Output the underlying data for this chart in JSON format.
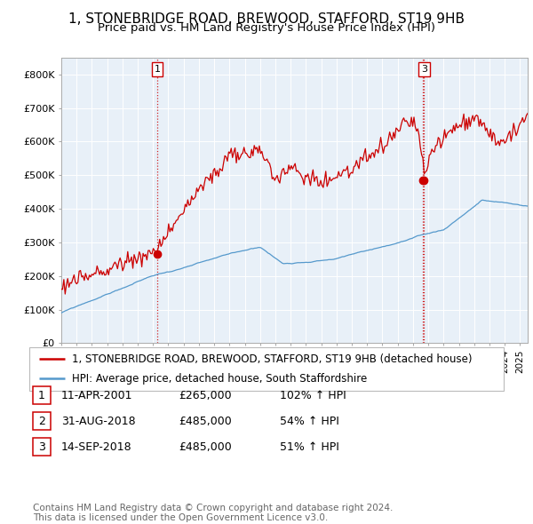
{
  "title": "1, STONEBRIDGE ROAD, BREWOOD, STAFFORD, ST19 9HB",
  "subtitle": "Price paid vs. HM Land Registry's House Price Index (HPI)",
  "ylabel_ticks": [
    "£0",
    "£100K",
    "£200K",
    "£300K",
    "£400K",
    "£500K",
    "£600K",
    "£700K",
    "£800K"
  ],
  "ytick_values": [
    0,
    100000,
    200000,
    300000,
    400000,
    500000,
    600000,
    700000,
    800000
  ],
  "ylim": [
    0,
    850000
  ],
  "xlim_start": 1995.0,
  "xlim_end": 2025.5,
  "red_line_color": "#cc0000",
  "blue_line_color": "#5599cc",
  "chart_bg_color": "#e8f0f8",
  "grid_color": "#ffffff",
  "bg_color": "#ffffff",
  "legend_label_red": "1, STONEBRIDGE ROAD, BREWOOD, STAFFORD, ST19 9HB (detached house)",
  "legend_label_blue": "HPI: Average price, detached house, South Staffordshire",
  "sale_1_date": 2001.28,
  "sale_1_price": 265000,
  "sale_1_label": "1",
  "sale_2_date": 2018.67,
  "sale_2_price": 485000,
  "sale_2_label": "2",
  "sale_3_date": 2018.72,
  "sale_3_price": 485000,
  "sale_3_label": "3",
  "table_rows": [
    [
      "1",
      "11-APR-2001",
      "£265,000",
      "102% ↑ HPI"
    ],
    [
      "2",
      "31-AUG-2018",
      "£485,000",
      "54% ↑ HPI"
    ],
    [
      "3",
      "14-SEP-2018",
      "£485,000",
      "51% ↑ HPI"
    ]
  ],
  "footer_text": "Contains HM Land Registry data © Crown copyright and database right 2024.\nThis data is licensed under the Open Government Licence v3.0.",
  "title_fontsize": 11,
  "subtitle_fontsize": 9.5,
  "tick_fontsize": 8,
  "legend_fontsize": 8.5,
  "table_fontsize": 9,
  "footer_fontsize": 7.5
}
